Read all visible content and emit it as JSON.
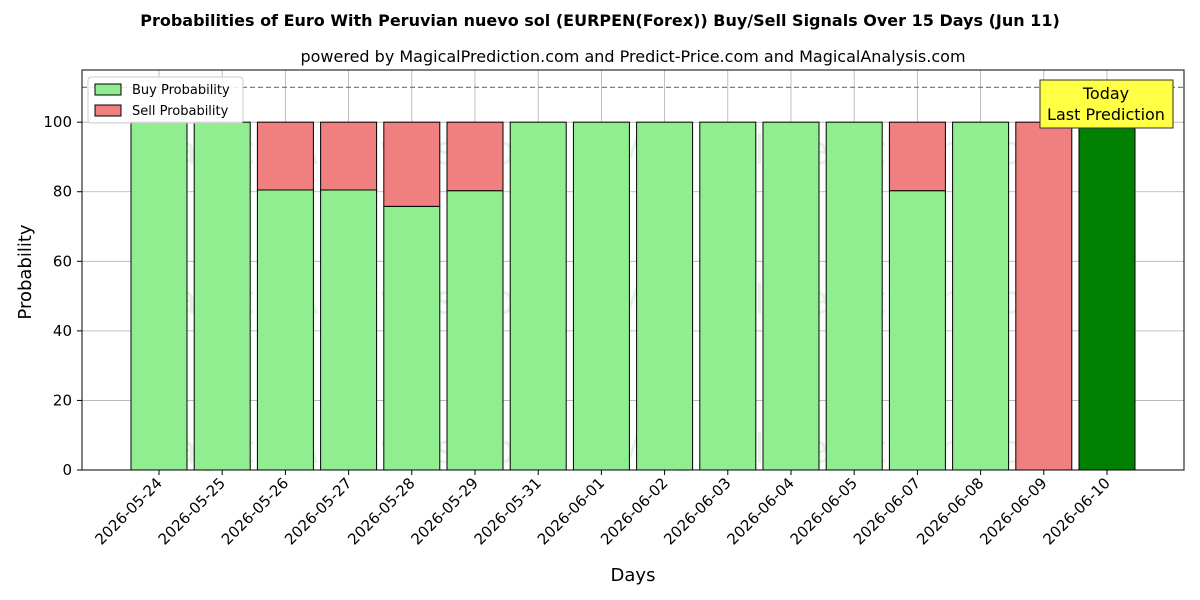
{
  "chart_data": {
    "type": "bar",
    "title": "Probabilities of Euro With Peruvian nuevo sol (EURPEN(Forex)) Buy/Sell Signals Over 15 Days (Jun 11)",
    "subtitle": "powered by MagicalPrediction.com and Predict-Price.com and MagicalAnalysis.com",
    "xlabel": "Days",
    "ylabel": "Probability",
    "ylim": [
      0,
      115
    ],
    "yticks": [
      0,
      20,
      40,
      60,
      80,
      100
    ],
    "categories": [
      "2026-05-24",
      "2026-05-25",
      "2026-05-26",
      "2026-05-27",
      "2026-05-28",
      "2026-05-29",
      "2026-05-31",
      "2026-06-01",
      "2026-06-02",
      "2026-06-03",
      "2026-06-04",
      "2026-06-05",
      "2026-06-07",
      "2026-06-08",
      "2026-06-09",
      "2026-06-10"
    ],
    "series": [
      {
        "name": "Buy Probability",
        "color": "#90ee90",
        "values": [
          100,
          100,
          80.5,
          80.5,
          75.8,
          80.3,
          100,
          100,
          100,
          100,
          100,
          100,
          80.3,
          100,
          0,
          100
        ]
      },
      {
        "name": "Sell Probability",
        "color": "#f08080",
        "values": [
          0,
          0,
          19.5,
          19.5,
          24.2,
          19.7,
          0,
          0,
          0,
          0,
          0,
          0,
          19.7,
          0,
          100,
          0
        ]
      }
    ],
    "highlight": {
      "index": 15,
      "color": "#008000"
    },
    "reference_line": {
      "y": 110,
      "style": "dashed",
      "color": "#808080"
    },
    "annotation": {
      "lines": [
        "Today",
        "Last Prediction"
      ],
      "background": "#ffff44"
    },
    "watermark": "MagicalAnalysis.com",
    "watermark2": "MagicalPrediction.com",
    "legend_position": "top-left",
    "grid": true
  }
}
